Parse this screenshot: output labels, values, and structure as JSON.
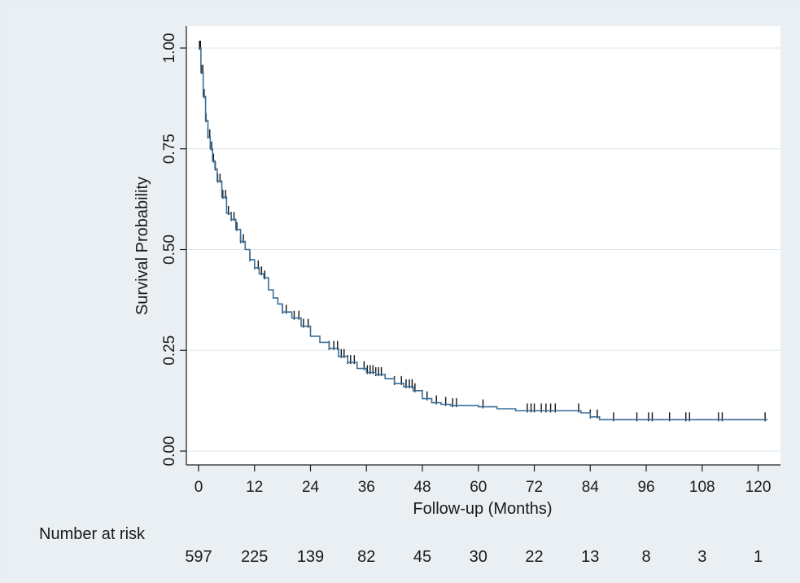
{
  "chart_data": {
    "type": "line",
    "title": "",
    "xlabel": "Follow-up (Months)",
    "ylabel": "Survival Probability",
    "xlim": [
      0,
      124
    ],
    "ylim": [
      0,
      1.04
    ],
    "x_ticks": [
      0,
      12,
      24,
      36,
      48,
      60,
      72,
      84,
      96,
      108,
      120
    ],
    "y_ticks": [
      0.0,
      0.25,
      0.5,
      0.75,
      1.0
    ],
    "y_tick_labels": [
      "0.00",
      "0.25",
      "0.50",
      "0.75",
      "1.00"
    ],
    "grid": true,
    "step_function": true,
    "curve_color": "#3a6f9a",
    "series": [
      {
        "x": [
          0,
          0.5,
          1,
          1.5,
          2,
          2.5,
          3,
          3.5,
          4,
          5,
          6,
          7,
          8,
          9,
          10,
          11,
          12,
          13,
          14,
          15,
          16,
          17,
          18,
          20,
          22,
          24,
          26,
          28,
          30,
          32,
          34,
          36,
          38,
          40,
          42,
          44,
          46,
          48,
          50,
          52,
          54,
          56,
          60,
          64,
          68,
          72,
          76,
          80,
          82,
          84,
          86,
          90,
          96,
          102,
          108,
          114,
          120,
          122
        ],
        "y": [
          1.0,
          0.94,
          0.88,
          0.82,
          0.78,
          0.75,
          0.72,
          0.7,
          0.67,
          0.63,
          0.59,
          0.575,
          0.55,
          0.52,
          0.5,
          0.475,
          0.455,
          0.44,
          0.43,
          0.4,
          0.38,
          0.365,
          0.345,
          0.33,
          0.31,
          0.285,
          0.27,
          0.255,
          0.235,
          0.22,
          0.205,
          0.195,
          0.19,
          0.18,
          0.168,
          0.16,
          0.15,
          0.13,
          0.12,
          0.116,
          0.113,
          0.113,
          0.11,
          0.105,
          0.1,
          0.1,
          0.1,
          0.1,
          0.095,
          0.085,
          0.078,
          0.078,
          0.078,
          0.078,
          0.078,
          0.078,
          0.078,
          0.078
        ]
      }
    ],
    "censor_marks_x": [
      0.2,
      0.4,
      0.6,
      0.9,
      1.2,
      1.6,
      2.0,
      2.4,
      2.8,
      3.2,
      3.6,
      4.1,
      4.6,
      5.2,
      5.8,
      6.4,
      7.0,
      7.6,
      8.2,
      9.0,
      9.6,
      11.0,
      12.0,
      12.8,
      13.5,
      14.2,
      18.0,
      18.8,
      20.5,
      21.5,
      22.5,
      23.5,
      28.0,
      29.0,
      29.8,
      30.6,
      31.2,
      32.0,
      32.6,
      33.4,
      35.5,
      36.2,
      36.8,
      37.4,
      38.0,
      38.6,
      39.2,
      42.0,
      43.5,
      44.5,
      45.2,
      45.8,
      46.4,
      49.0,
      51.0,
      53.0,
      54.5,
      55.3,
      61.0,
      70.5,
      71.3,
      72.0,
      73.5,
      74.5,
      75.5,
      76.5,
      81.5,
      84.0,
      85.5,
      89.0,
      94.0,
      96.5,
      97.3,
      101.0,
      104.5,
      105.3,
      111.5,
      112.3,
      121.5
    ],
    "risk_table": {
      "label": "Number at risk",
      "x": [
        0,
        12,
        24,
        36,
        48,
        60,
        72,
        84,
        96,
        108,
        120
      ],
      "counts": [
        "597",
        "225",
        "139",
        "82",
        "45",
        "30",
        "22",
        "13",
        "8",
        "3",
        "1"
      ]
    }
  }
}
